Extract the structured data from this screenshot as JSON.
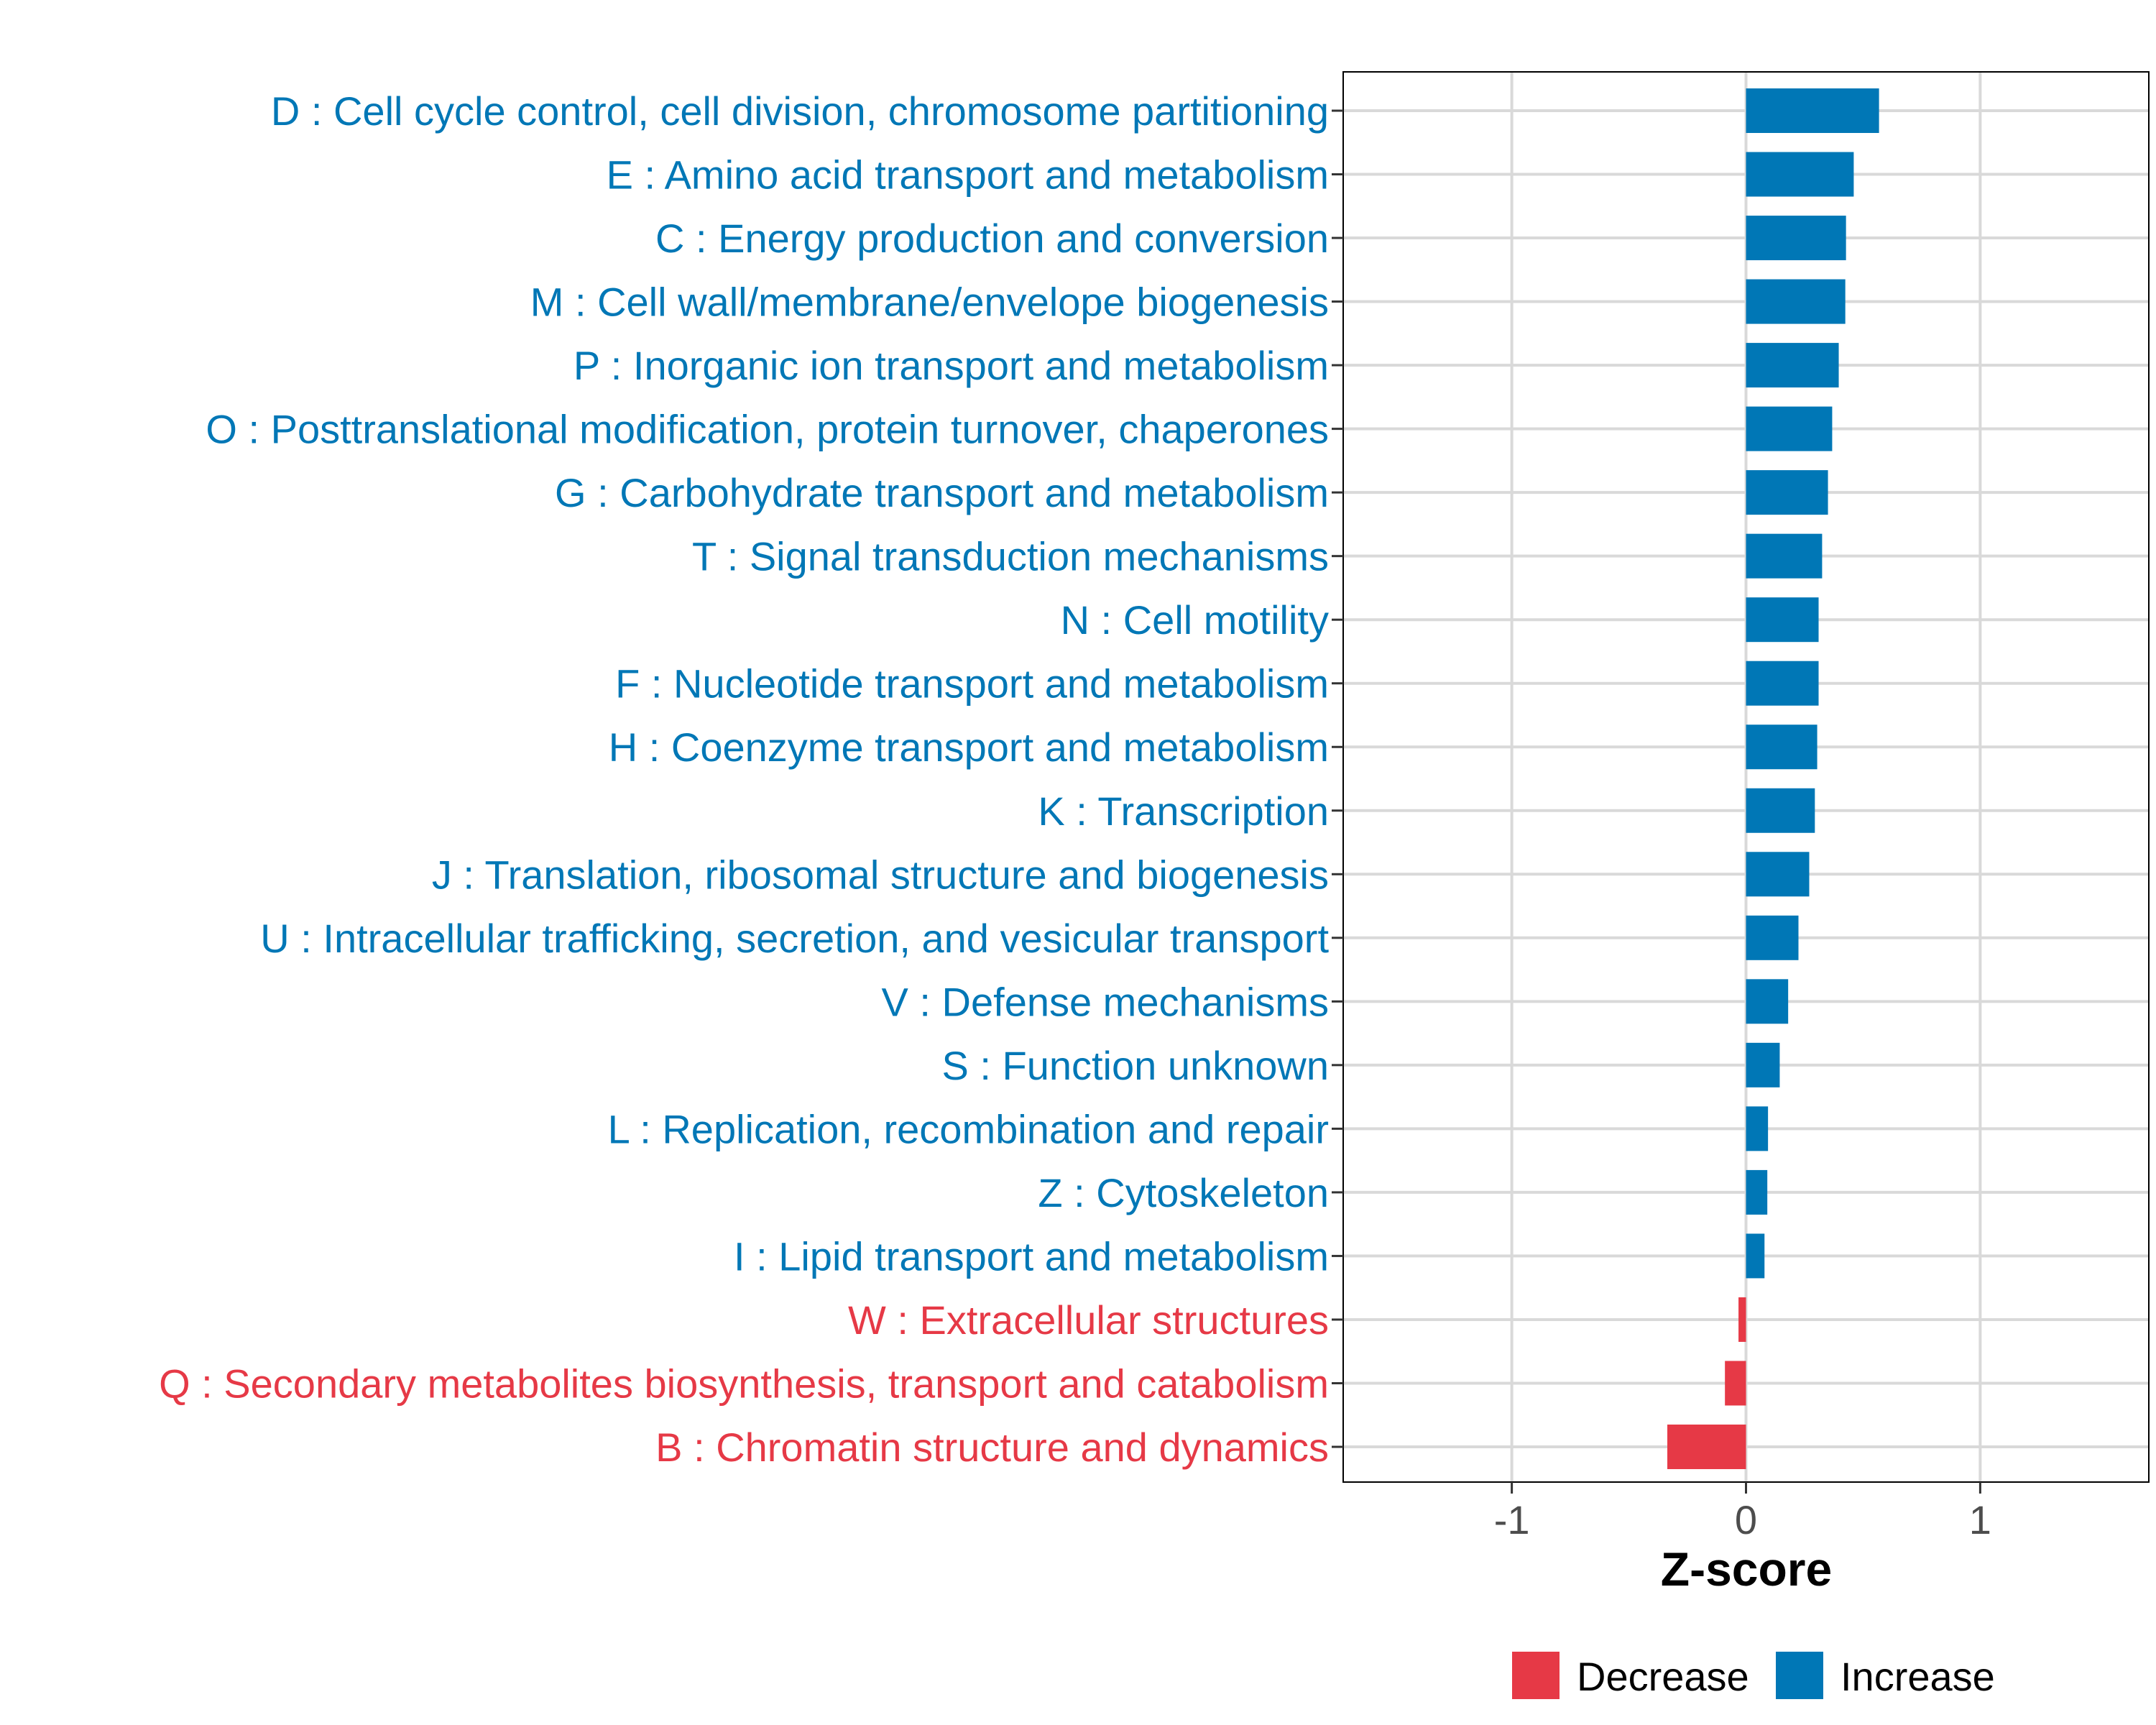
{
  "chart_data": {
    "type": "bar",
    "orientation": "horizontal",
    "title": "",
    "xlabel": "Z-score",
    "ylabel": "",
    "xlim": [
      -1.72,
      1.72
    ],
    "xticks": [
      -1,
      0,
      1
    ],
    "xtick_labels": [
      "-1",
      "0",
      "1"
    ],
    "grid": true,
    "legend_position": "bottom",
    "legend": [
      {
        "label": "Decrease",
        "color": "#e63946"
      },
      {
        "label": "Increase",
        "color": "#0077b6"
      }
    ],
    "categories": [
      "D : Cell cycle control, cell division, chromosome partitioning",
      "E : Amino acid transport and metabolism",
      "C : Energy production and conversion",
      "M : Cell wall/membrane/envelope biogenesis",
      "P : Inorganic ion transport and metabolism",
      "O : Posttranslational modification, protein turnover, chaperones",
      "G : Carbohydrate transport and metabolism",
      "T : Signal transduction mechanisms",
      "N : Cell motility",
      "F : Nucleotide transport and metabolism",
      "H : Coenzyme transport and metabolism",
      "K : Transcription",
      "J : Translation, ribosomal structure and biogenesis",
      "U : Intracellular trafficking, secretion, and vesicular transport",
      "V : Defense mechanisms",
      "S : Function unknown",
      "L : Replication, recombination and repair",
      "Z : Cytoskeleton",
      "I : Lipid transport and metabolism",
      "W : Extracellular structures",
      "Q : Secondary metabolites biosynthesis, transport and catabolism",
      "B : Chromatin structure and dynamics"
    ],
    "values": [
      0.568,
      0.46,
      0.427,
      0.424,
      0.396,
      0.368,
      0.35,
      0.325,
      0.31,
      0.31,
      0.304,
      0.294,
      0.27,
      0.224,
      0.18,
      0.144,
      0.094,
      0.091,
      0.079,
      -0.032,
      -0.09,
      -0.336
    ],
    "colors": {
      "increase": "#0077b6",
      "decrease": "#e63946",
      "grid": "#d9d9d9",
      "axis": "#000000",
      "tick_text": "#4d4d4d"
    }
  }
}
